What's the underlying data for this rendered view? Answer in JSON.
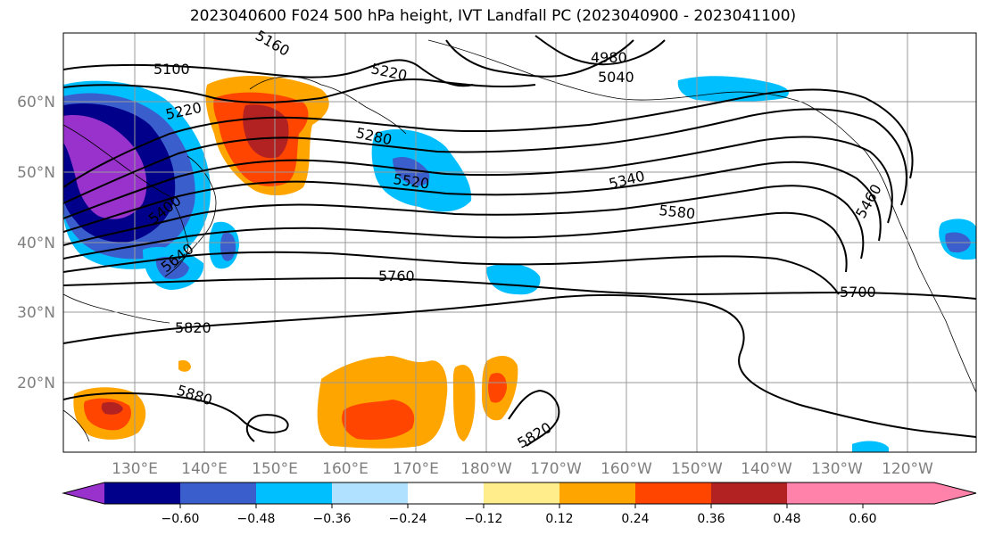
{
  "title": "2023040600 F024 500 hPa height, IVT Landfall PC (2023040900 - 2023041100)",
  "map": {
    "lat_labels": [
      "60°N",
      "50°N",
      "40°N",
      "30°N",
      "20°N"
    ],
    "lon_labels": [
      "130°E",
      "140°E",
      "150°E",
      "160°E",
      "170°E",
      "180°W",
      "170°W",
      "160°W",
      "150°W",
      "140°W",
      "130°W",
      "120°W"
    ],
    "contour_labels": [
      "5100",
      "5220",
      "5220",
      "5160",
      "4980",
      "5040",
      "5280",
      "5520",
      "5340",
      "5460",
      "5400",
      "5640",
      "5580",
      "5760",
      "5700",
      "5820",
      "5880",
      "5820"
    ],
    "contour_color": "#000000"
  },
  "colorbar": {
    "colors": [
      "#9932cc",
      "#00008b",
      "#3a5fcd",
      "#00bfff",
      "#b0e2ff",
      "#ffffff",
      "#ffec8b",
      "#ffa500",
      "#ff4500",
      "#b22222",
      "#ff82ab"
    ],
    "ticks": [
      "−0.60",
      "−0.48",
      "−0.36",
      "−0.24",
      "−0.12",
      "0.12",
      "0.24",
      "0.36",
      "0.48",
      "0.60"
    ],
    "tick_values": [
      -0.6,
      -0.48,
      -0.36,
      -0.24,
      -0.12,
      0.12,
      0.24,
      0.36,
      0.48,
      0.6
    ]
  }
}
